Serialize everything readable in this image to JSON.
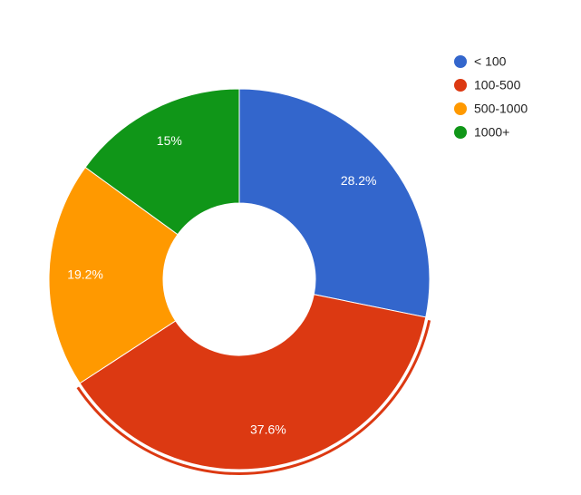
{
  "chart_data": {
    "type": "donut",
    "categories": [
      "< 100",
      "100-500",
      "500-1000",
      "1000+"
    ],
    "values": [
      28.2,
      37.6,
      19.2,
      15
    ],
    "value_labels": [
      "28.2%",
      "37.6%",
      "19.2%",
      "15%"
    ],
    "colors": [
      "#3366cc",
      "#dc3912",
      "#ff9900",
      "#109618"
    ],
    "legend": "right"
  }
}
